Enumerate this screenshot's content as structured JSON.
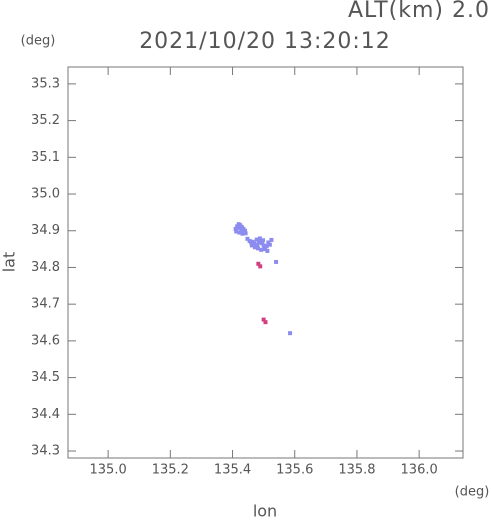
{
  "chart_data": {
    "type": "scatter",
    "title": "2021/10/20 13:20:12",
    "subtitle": "ALT(km) 2.0",
    "y_unit": "(deg)",
    "x_unit": "(deg)",
    "xlabel": "lon",
    "ylabel": "lat",
    "xlim": [
      134.871,
      136.141
    ],
    "ylim": [
      34.281,
      35.346
    ],
    "xticks": [
      {
        "value": 135,
        "label": "135.0"
      },
      135.2,
      135.4,
      135.6,
      135.8,
      {
        "value": 136,
        "label": "136.0"
      }
    ],
    "yticks": [
      34.3,
      34.4,
      34.5,
      34.6,
      34.7,
      34.8,
      34.9,
      {
        "value": 35,
        "label": "35.0"
      },
      35.1,
      35.2,
      35.3
    ],
    "series": [
      {
        "color": "#8c8cf0",
        "x": [
          135.41,
          135.415,
          135.42,
          135.425,
          135.43,
          135.435,
          135.44,
          135.412,
          135.422,
          135.432,
          135.442,
          135.418,
          135.428,
          135.448,
          135.455,
          135.46,
          135.465,
          135.47,
          135.475,
          135.48,
          135.485,
          135.49,
          135.495,
          135.5,
          135.505,
          135.51,
          135.52,
          135.525,
          135.462,
          135.472,
          135.482,
          135.492,
          135.502,
          135.512,
          135.478,
          135.488,
          135.498,
          135.515,
          135.54,
          135.585
        ],
        "y": [
          34.905,
          34.912,
          34.918,
          34.915,
          34.91,
          34.905,
          34.9,
          34.898,
          34.895,
          34.892,
          34.893,
          34.908,
          34.902,
          34.878,
          34.872,
          34.868,
          34.87,
          34.865,
          34.862,
          34.86,
          34.868,
          34.872,
          34.866,
          34.86,
          34.855,
          34.858,
          34.862,
          34.875,
          34.86,
          34.855,
          34.852,
          34.848,
          34.85,
          34.845,
          34.876,
          34.879,
          34.874,
          34.868,
          34.815,
          34.621
        ]
      },
      {
        "color": "#d04080",
        "x": [
          135.483,
          135.489,
          135.5,
          135.506
        ],
        "y": [
          34.81,
          34.803,
          34.658,
          34.651
        ]
      }
    ]
  }
}
